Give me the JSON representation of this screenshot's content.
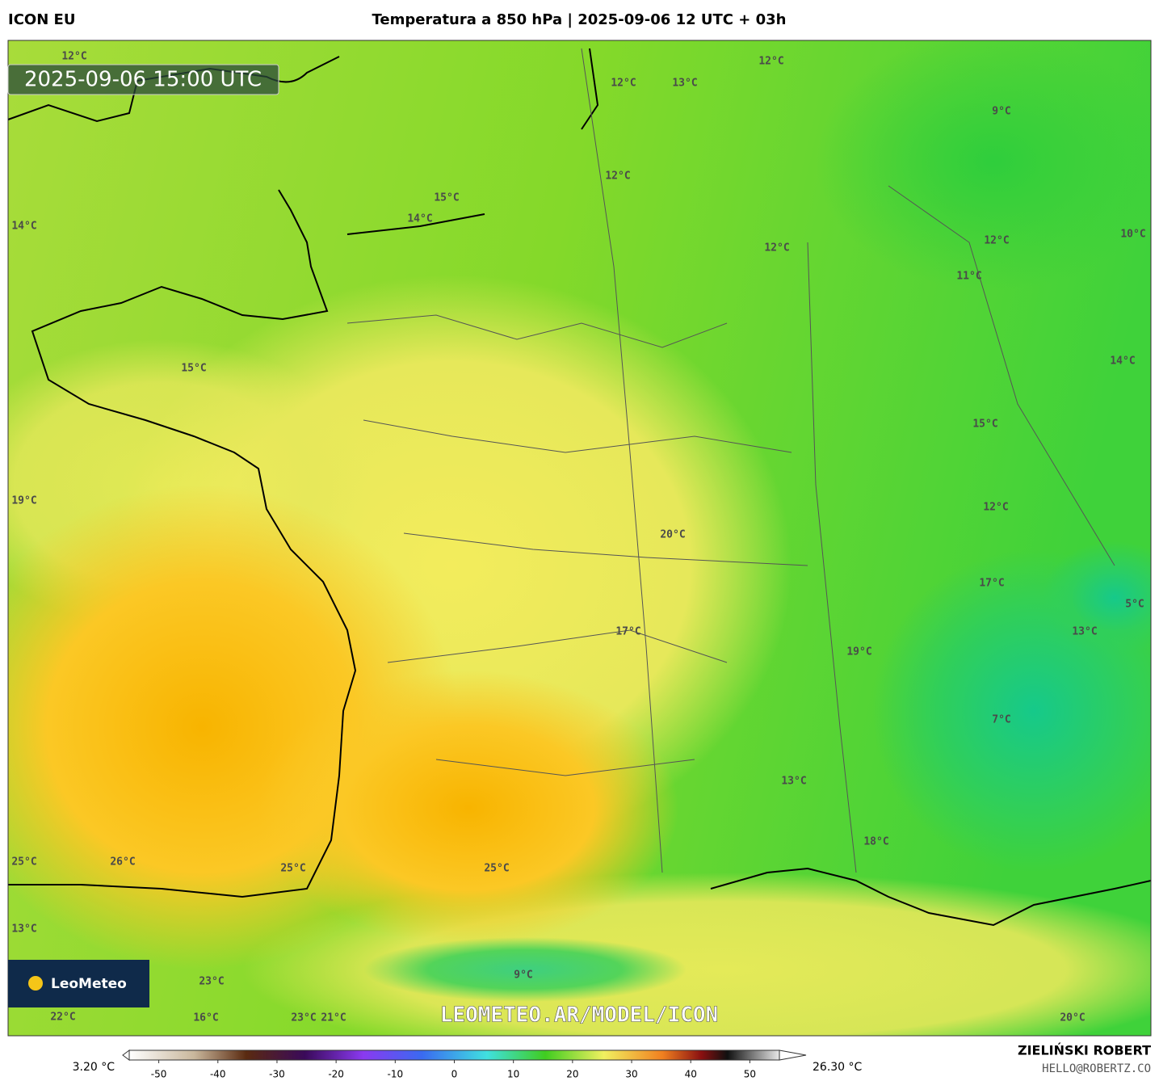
{
  "header": {
    "model": "ICON EU",
    "title": "Temperatura a 850 hPa | 2025-09-06 12 UTC + 03h"
  },
  "map": {
    "timestamp": "2025-09-06 15:00 UTC",
    "watermark": "LEOMETEO.AR/MODEL/ICON",
    "logo": "LeoMeteo",
    "labels": [
      "12°C",
      "12°C",
      "12°C",
      "13°C",
      "9°C",
      "12°C",
      "15°C",
      "14°C",
      "14°C",
      "12°C",
      "12°C",
      "10°C",
      "11°C",
      "14°C",
      "15°C",
      "15°C",
      "19°C",
      "12°C",
      "20°C",
      "17°C",
      "5°C",
      "17°C",
      "13°C",
      "19°C",
      "7°C",
      "13°C",
      "18°C",
      "25°C",
      "26°C",
      "25°C",
      "25°C",
      "13°C",
      "9°C",
      "23°C",
      "22°C",
      "16°C",
      "23°C",
      "21°C",
      "20°C"
    ]
  },
  "colorbar": {
    "min_label": "3.20 °C",
    "max_label": "26.30 °C",
    "lim": [
      -55,
      55
    ],
    "ticks": [
      -50,
      -40,
      -30,
      -20,
      -10,
      0,
      10,
      20,
      30,
      40,
      50
    ]
  },
  "footer": {
    "author": "ZIELIŃSKI ROBERT",
    "contact": "HELLO@ROBERTZ.CO"
  }
}
